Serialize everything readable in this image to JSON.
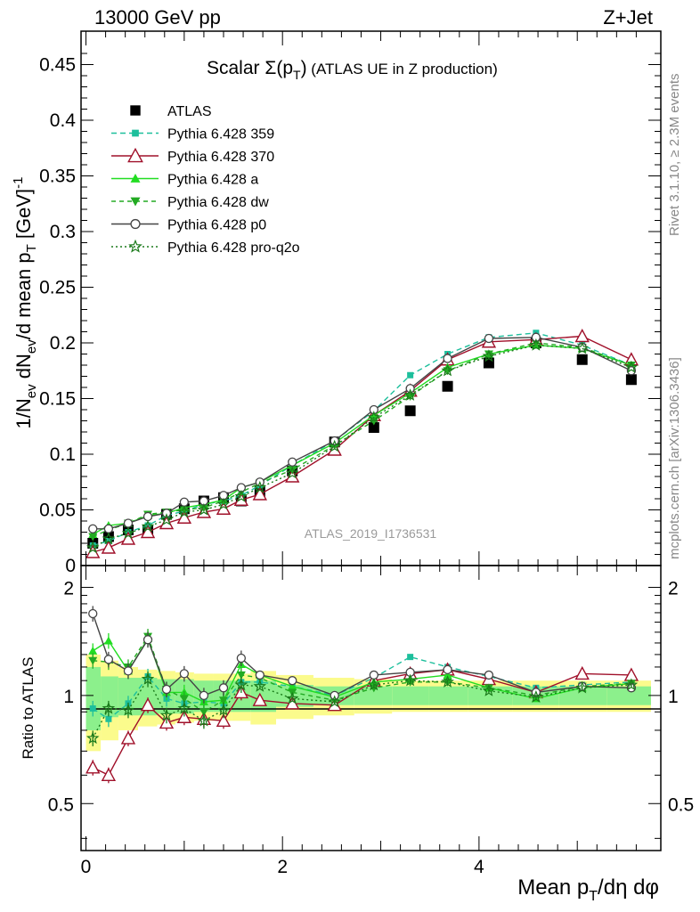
{
  "header": {
    "left": "13000 GeV pp",
    "right": "Z+Jet",
    "title": "Scalar Σ(p_T) (ATLAS UE in Z production)",
    "analysis_id": "ATLAS_2019_I1736531",
    "side_rivet": "Rivet 3.1.10, ≥ 2.3M events",
    "side_mcplots": "mcplots.cern.ch [arXiv:1306.3436]"
  },
  "colors": {
    "atlas": "#000000",
    "p359": "#1dbf9c",
    "p370": "#a0102a",
    "pa": "#22dd22",
    "pdw": "#22aa22",
    "pp0": "#444444",
    "pq2o": "#1a7a1a",
    "band_outer": "#fbfb8c",
    "band_inner": "#8cf08c"
  },
  "chart_data": [
    {
      "type": "line",
      "panel": "main",
      "ylabel": "1/N_ev dN_ev/d mean p_T [GeV]^-1",
      "xlabel": "Mean p_T/dη dφ",
      "xlim": [
        -0.05,
        5.85
      ],
      "ylim": [
        0,
        0.48
      ],
      "y_ticks": [
        "0",
        "0.05",
        "0.1",
        "0.15",
        "0.2",
        "0.25",
        "0.3",
        "0.35",
        "0.4",
        "0.45"
      ],
      "x": [
        0.07,
        0.23,
        0.43,
        0.63,
        0.82,
        1.0,
        1.2,
        1.4,
        1.58,
        1.77,
        2.1,
        2.53,
        2.93,
        3.3,
        3.68,
        4.1,
        4.58,
        5.05,
        5.55
      ],
      "series": [
        {
          "name": "ATLAS",
          "key": "atlas",
          "marker": "square",
          "dash": "",
          "values": [
            0.02,
            0.026,
            0.032,
            0.032,
            0.046,
            0.051,
            0.058,
            0.061,
            0.058,
            0.066,
            0.085,
            0.111,
            0.124,
            0.139,
            0.161,
            0.182,
            0.2,
            0.185,
            0.167
          ]
        },
        {
          "name": "Pythia 6.428 359",
          "key": "p359",
          "marker": "square-small",
          "dash": "6,4",
          "values": [
            0.018,
            0.022,
            0.03,
            0.036,
            0.045,
            0.049,
            0.055,
            0.058,
            0.063,
            0.072,
            0.09,
            0.112,
            0.139,
            0.171,
            0.19,
            0.205,
            0.209,
            0.198,
            0.18
          ]
        },
        {
          "name": "Pythia 6.428 370",
          "key": "p370",
          "marker": "triangle-open",
          "dash": "",
          "values": [
            0.012,
            0.016,
            0.024,
            0.03,
            0.038,
            0.043,
            0.048,
            0.051,
            0.059,
            0.064,
            0.08,
            0.104,
            0.135,
            0.157,
            0.185,
            0.201,
            0.203,
            0.206,
            0.185
          ]
        },
        {
          "name": "Pythia 6.428 a",
          "key": "pa",
          "marker": "triangle",
          "dash": "",
          "values": [
            0.028,
            0.036,
            0.038,
            0.045,
            0.047,
            0.052,
            0.055,
            0.059,
            0.07,
            0.075,
            0.09,
            0.11,
            0.135,
            0.155,
            0.178,
            0.19,
            0.198,
            0.195,
            0.18
          ]
        },
        {
          "name": "Pythia 6.428 dw",
          "key": "pdw",
          "marker": "triangle-down",
          "dash": "5,4",
          "values": [
            0.026,
            0.032,
            0.038,
            0.046,
            0.048,
            0.05,
            0.052,
            0.058,
            0.066,
            0.074,
            0.086,
            0.108,
            0.13,
            0.152,
            0.175,
            0.19,
            0.2,
            0.196,
            0.18
          ]
        },
        {
          "name": "Pythia 6.428 p0",
          "key": "pp0",
          "marker": "circle-open",
          "dash": "",
          "values": [
            0.033,
            0.033,
            0.038,
            0.044,
            0.047,
            0.057,
            0.058,
            0.063,
            0.07,
            0.075,
            0.093,
            0.112,
            0.14,
            0.159,
            0.186,
            0.204,
            0.205,
            0.196,
            0.175
          ]
        },
        {
          "name": "Pythia 6.428 pro-q2o",
          "key": "pq2o",
          "marker": "star",
          "dash": "2,3",
          "values": [
            0.016,
            0.024,
            0.029,
            0.035,
            0.041,
            0.048,
            0.05,
            0.055,
            0.062,
            0.07,
            0.083,
            0.107,
            0.133,
            0.153,
            0.175,
            0.188,
            0.198,
            0.195,
            0.178
          ]
        }
      ]
    },
    {
      "type": "line",
      "panel": "ratio",
      "ylabel": "Ratio to ATLAS",
      "xlabel": "Mean p_T/dη dφ",
      "xlim": [
        -0.05,
        5.85
      ],
      "ylim": [
        0.37,
        2.3
      ],
      "y_ticks": [
        "0.5",
        "1",
        "2"
      ],
      "x_ticks": [
        "0",
        "2",
        "4"
      ],
      "x": [
        0.07,
        0.23,
        0.43,
        0.63,
        0.82,
        1.0,
        1.2,
        1.4,
        1.58,
        1.77,
        2.1,
        2.53,
        2.93,
        3.3,
        3.68,
        4.1,
        4.58,
        5.05,
        5.55
      ],
      "series": [
        {
          "key": "p359",
          "values": [
            0.92,
            0.86,
            0.95,
            1.13,
            0.98,
            0.95,
            0.96,
            0.95,
            1.09,
            1.09,
            1.06,
            1.0,
            1.12,
            1.28,
            1.2,
            1.13,
            1.05,
            1.07,
            1.09
          ]
        },
        {
          "key": "p370",
          "values": [
            0.63,
            0.6,
            0.76,
            0.94,
            0.84,
            0.87,
            0.86,
            0.85,
            1.02,
            0.97,
            0.95,
            0.94,
            1.1,
            1.15,
            1.18,
            1.11,
            1.02,
            1.15,
            1.14
          ]
        },
        {
          "key": "pa",
          "values": [
            1.33,
            1.42,
            1.17,
            1.44,
            1.02,
            1.02,
            0.96,
            0.97,
            1.22,
            1.14,
            1.06,
            0.99,
            1.09,
            1.11,
            1.14,
            1.05,
            0.98,
            1.05,
            1.08
          ]
        },
        {
          "key": "pdw",
          "values": [
            1.25,
            1.24,
            1.2,
            1.46,
            1.04,
            0.98,
            0.9,
            0.97,
            1.14,
            1.12,
            1.02,
            0.97,
            1.05,
            1.09,
            1.09,
            1.05,
            1.0,
            1.06,
            1.08
          ]
        },
        {
          "key": "pp0",
          "values": [
            1.69,
            1.26,
            1.17,
            1.43,
            1.04,
            1.15,
            1.0,
            1.05,
            1.27,
            1.14,
            1.1,
            1.0,
            1.14,
            1.16,
            1.18,
            1.14,
            1.02,
            1.06,
            1.05
          ]
        },
        {
          "key": "pq2o",
          "values": [
            0.76,
            0.92,
            0.91,
            1.11,
            0.88,
            0.92,
            0.85,
            0.91,
            1.07,
            1.06,
            0.98,
            0.96,
            1.07,
            1.1,
            1.09,
            1.03,
            0.99,
            1.05,
            1.07
          ]
        }
      ]
    }
  ]
}
